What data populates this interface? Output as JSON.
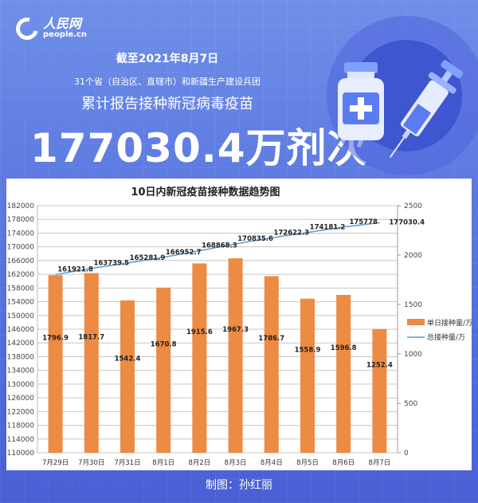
{
  "header": {
    "logo_cn": "人民网",
    "logo_en": "people.cn",
    "date_line": "截至2021年8月7日",
    "sub_line": "31个省（自治区、直辖市）和新疆生产建设兵团",
    "main_line": "累计报告接种新冠病毒疫苗",
    "big_number": "177030.4万剂次"
  },
  "illustration": {
    "icons": [
      "vaccine-vial-icon",
      "syringe-icon"
    ]
  },
  "credit": "制图：孙红丽",
  "colors": {
    "bar": "#ed8a43",
    "line": "#5b9bd5",
    "background": "#5b78e0"
  },
  "chart_data": {
    "type": "bar+line",
    "title": "10日内新冠疫苗接种数据趋势图",
    "categories": [
      "7月29日",
      "7月30日",
      "7月31日",
      "8月1日",
      "8月2日",
      "8月3日",
      "8月4日",
      "8月5日",
      "8月6日",
      "8月7日"
    ],
    "series": [
      {
        "name": "单日接种量/万",
        "type": "bar",
        "axis": "right",
        "values": [
          1796.9,
          1817.7,
          1542.4,
          1670.8,
          1915.6,
          1967.3,
          1786.7,
          1558.9,
          1596.8,
          1252.4
        ]
      },
      {
        "name": "总接种量/万",
        "type": "line",
        "axis": "left",
        "values": [
          161921.8,
          163739.5,
          165281.9,
          166952.7,
          168868.3,
          170835.6,
          172622.3,
          174181.2,
          175778,
          177030.4
        ]
      }
    ],
    "y_left": {
      "min": 110000,
      "max": 182000,
      "step": 4000,
      "ticks": [
        "182000",
        "178000",
        "174000",
        "170000",
        "166000",
        "162000",
        "158000",
        "154000",
        "150000",
        "146000",
        "142000",
        "138000",
        "134000",
        "130000",
        "126000",
        "122000",
        "118000",
        "114000",
        "110000"
      ]
    },
    "y_right": {
      "min": 0,
      "max": 2500,
      "step": 500,
      "ticks": [
        "2500",
        "2000",
        "1500",
        "1000",
        "500",
        "0"
      ]
    },
    "legend": [
      "单日接种量/万",
      "总接种量/万"
    ],
    "legend_position": "right",
    "grid": true
  }
}
